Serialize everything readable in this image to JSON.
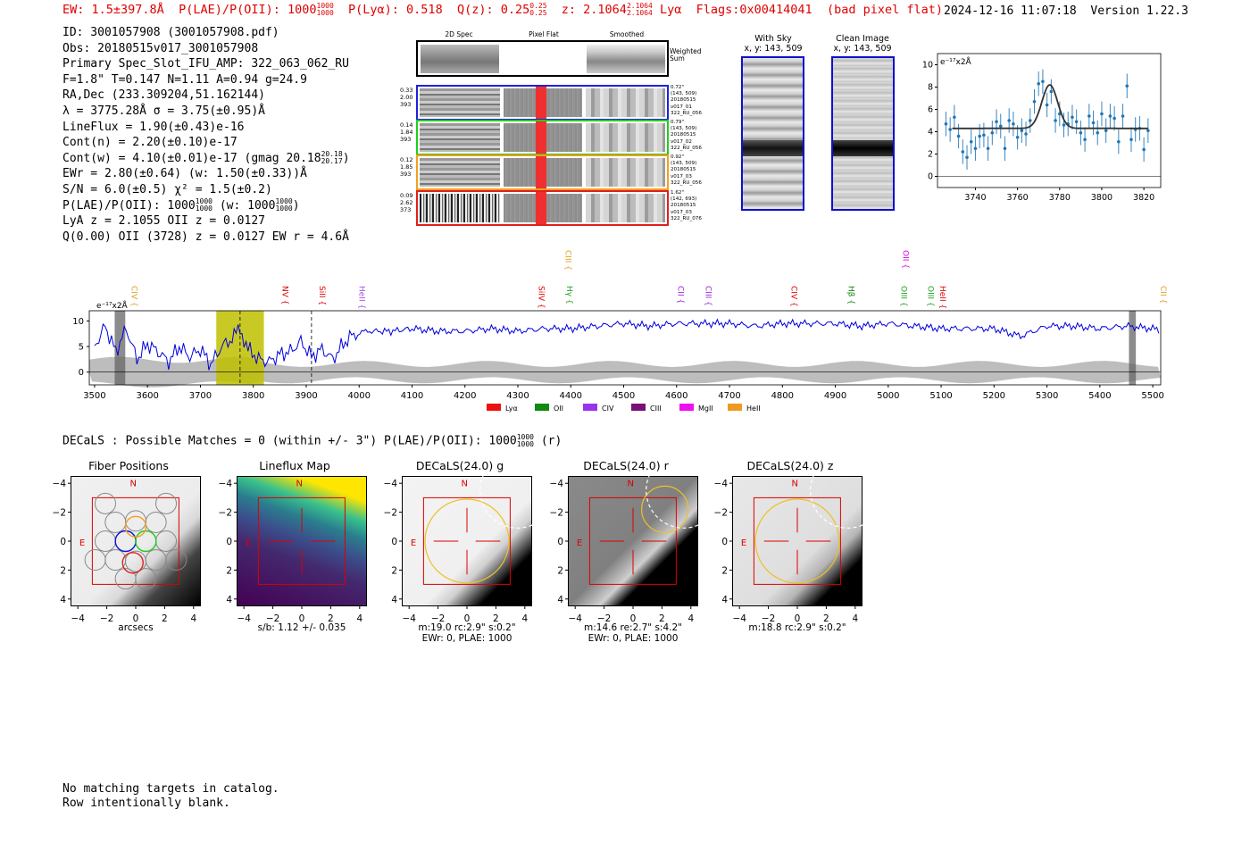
{
  "header": {
    "ew": "EW: 1.5±397.8Å",
    "plae_label": "P(LAE)/P(OII): 1000",
    "plae_hi": "1000",
    "plae_lo": "1000",
    "plya": "P(Lyα): 0.518",
    "qz_label": "Q(z): 0.25",
    "qz_hi": "0.25",
    "qz_lo": "0.25",
    "z_label": "z: 2.1064",
    "z_hi": "2.1064",
    "z_lo": "2.1064",
    "z_line": "Lyα",
    "flags": "Flags:0x00414041",
    "flag_note": "(bad pixel flat)",
    "timestamp": "2024-12-16 11:07:18",
    "version": "Version 1.22.3"
  },
  "info": {
    "id": "ID: 3001057908 (3001057908.pdf)",
    "obs": "Obs: 20180515v017_3001057908",
    "primary": "Primary Spec_Slot_IFU_AMP: 322_063_062_RU",
    "fiber": "F=1.8\"  T=0.147  N=1.11  A=0.94  g=24.9",
    "radec": "RA,Dec (233.309204,51.162144)",
    "lambda": "λ = 3775.28Å  σ = 3.75(±0.95)Å",
    "lineflux": "LineFlux = 1.90(±0.43)e-16",
    "contn": "Cont(n) = 2.20(±0.10)e-17",
    "contw": "Cont(w) = 4.10(±0.01)e-17 (gmag 20.18",
    "contw_hi": "20.18",
    "contw_lo": "20.17",
    "contw_end": ")",
    "ewr": "EWr = 2.80(±0.64) (w: 1.50(±0.33))Å",
    "sn": "S/N = 6.0(±0.5)  χ² = 1.5(±0.2)",
    "plae": "P(LAE)/P(OII): 1000",
    "plae_hi": "1000",
    "plae_lo": "1000",
    "plae_w": "(w: 1000",
    "plae_w_hi": "1000",
    "plae_w_lo": "1000",
    "plae_w_end": ")",
    "lya": "LyA z = 2.1055  OII z = 0.0127",
    "q": "Q(0.00) OII (3728) z = 0.0127  EW r = 4.6Å"
  },
  "cutouts": {
    "col_2d": "2D Spec",
    "col_flat": "Pixel Flat",
    "col_smooth": "Smoothed",
    "weighted": "Weighted Sum",
    "rows": [
      {
        "left": [
          "0.33",
          "2.00",
          "393"
        ],
        "right": [
          "0.72\"",
          "(143, 509)",
          "20180515",
          "v017_01",
          "322_RU_056"
        ],
        "color": "#2020dd"
      },
      {
        "left": [
          "0.14",
          "1.84",
          "393"
        ],
        "right": [
          "0.79\"",
          "(143, 509)",
          "20180515",
          "v017_02",
          "322_RU_056"
        ],
        "color": "#22cc22"
      },
      {
        "left": [
          "0.12",
          "1.85",
          "393"
        ],
        "right": [
          "0.92\"",
          "(143, 509)",
          "20180515",
          "v017_03",
          "322_RU_056"
        ],
        "color": "#f0a020"
      },
      {
        "left": [
          "0.09",
          "2.62",
          "373"
        ],
        "right": [
          "1.62\"",
          "(142, 693)",
          "20180515",
          "v017_03",
          "322_RU_076"
        ],
        "color": "#dd2020"
      }
    ]
  },
  "sky": {
    "with_sky_title": "With Sky",
    "with_sky_xy": "x, y: 143, 509",
    "clean_title": "Clean Image",
    "clean_xy": "x, y: 143, 509"
  },
  "chart_data": [
    {
      "type": "line",
      "id": "line-fit",
      "units_label": "e⁻¹⁷x2Å",
      "xlim": [
        3722,
        3828
      ],
      "ylim": [
        -1,
        11
      ],
      "xticks": [
        3740,
        3760,
        3780,
        3800,
        3820
      ],
      "yticks": [
        0,
        2,
        4,
        6,
        8,
        10
      ],
      "fit": {
        "continuum": 4.3,
        "peak": 8.2,
        "center": 3775.3,
        "sigma": 3.75,
        "x_start": 3729,
        "x_end": 3822
      },
      "points_x": [
        3726,
        3728,
        3730,
        3732,
        3734,
        3736,
        3738,
        3740,
        3742,
        3744,
        3746,
        3748,
        3750,
        3752,
        3754,
        3756,
        3758,
        3760,
        3762,
        3764,
        3766,
        3768,
        3770,
        3772,
        3774,
        3776,
        3778,
        3780,
        3782,
        3784,
        3786,
        3788,
        3790,
        3792,
        3794,
        3796,
        3798,
        3800,
        3802,
        3804,
        3806,
        3808,
        3810,
        3812,
        3814,
        3816,
        3818,
        3820,
        3822
      ],
      "points_y": [
        4.7,
        4.2,
        5.3,
        3.6,
        2.2,
        1.7,
        3.1,
        2.5,
        3.6,
        3.7,
        2.5,
        3.9,
        4.9,
        4.5,
        2.5,
        5.0,
        4.7,
        3.5,
        4.1,
        3.8,
        5.0,
        6.7,
        8.3,
        8.5,
        6.4,
        7.6,
        5.0,
        5.6,
        4.6,
        4.7,
        5.3,
        4.9,
        3.9,
        3.3,
        5.4,
        4.8,
        3.9,
        5.6,
        4.1,
        5.4,
        5.2,
        3.1,
        5.4,
        8.1,
        3.3,
        4.2,
        4.3,
        2.4,
        4.1
      ],
      "errors": 1.1
    },
    {
      "type": "line",
      "id": "full-spectrum",
      "units_label": "e⁻¹⁷x2Å",
      "xlim": [
        3490,
        5515
      ],
      "ylim": [
        -2.5,
        12
      ],
      "xticks": [
        3500,
        3600,
        3700,
        3800,
        3900,
        4000,
        4100,
        4200,
        4300,
        4400,
        4500,
        4600,
        4700,
        4800,
        4900,
        5000,
        5100,
        5200,
        5300,
        5400,
        5500
      ],
      "yticks": [
        0,
        5,
        10
      ],
      "highlight_band": [
        3730,
        3820
      ],
      "dashed_lines": [
        3775,
        3910
      ],
      "masked_bands": [
        [
          3538,
          3558
        ],
        [
          5455,
          5468
        ]
      ],
      "flux_x": [
        3500,
        3520,
        3540,
        3560,
        3580,
        3600,
        3620,
        3640,
        3660,
        3680,
        3700,
        3720,
        3740,
        3760,
        3775,
        3790,
        3810,
        3830,
        3850,
        3870,
        3890,
        3910,
        3930,
        3950,
        3970,
        3990,
        4020,
        4060,
        4100,
        4150,
        4200,
        4250,
        4300,
        4350,
        4400,
        4450,
        4500,
        4550,
        4600,
        4650,
        4700,
        4750,
        4800,
        4850,
        4900,
        4950,
        5000,
        5050,
        5100,
        5150,
        5200,
        5250,
        5300,
        5350,
        5400,
        5450,
        5500,
        5515
      ],
      "flux_y": [
        5.0,
        9.0,
        4.0,
        8.5,
        2.5,
        5.5,
        4.0,
        2.0,
        5.0,
        3.0,
        4.5,
        1.5,
        5.0,
        6.5,
        8.5,
        4.5,
        2.5,
        2.0,
        3.5,
        4.0,
        6.0,
        3.0,
        4.5,
        2.5,
        5.5,
        7.5,
        8.0,
        8.0,
        8.5,
        8.0,
        8.0,
        8.5,
        8.0,
        8.5,
        8.5,
        9.0,
        9.5,
        9.0,
        9.5,
        9.5,
        9.5,
        9.0,
        9.5,
        9.5,
        9.5,
        9.0,
        9.5,
        9.0,
        8.5,
        8.5,
        8.5,
        7.0,
        9.0,
        9.0,
        8.5,
        9.0,
        8.5,
        8.0
      ],
      "line_labels": [
        {
          "name": "CIV",
          "x": 3565,
          "color": "#e0a020"
        },
        {
          "name": "NV",
          "x": 3850,
          "color": "#e00000"
        },
        {
          "name": "SiII",
          "x": 3920,
          "color": "#e00000"
        },
        {
          "name": "HeII",
          "x": 3995,
          "color": "#a050e0"
        },
        {
          "name": "SiIV",
          "x": 4335,
          "color": "#e00000"
        },
        {
          "name": "CIII",
          "x": 4385,
          "color": "#e0a020"
        },
        {
          "name": "Hγ",
          "x": 4388,
          "color": "#20a020"
        },
        {
          "name": "CII",
          "x": 4598,
          "color": "#a020e0"
        },
        {
          "name": "CIII",
          "x": 4650,
          "color": "#a020e0"
        },
        {
          "name": "CIV",
          "x": 4812,
          "color": "#e00000"
        },
        {
          "name": "Hβ",
          "x": 4920,
          "color": "#108010"
        },
        {
          "name": "OIII",
          "x": 5020,
          "color": "#20a020"
        },
        {
          "name": "OII",
          "x": 5023,
          "color": "#e000e0"
        },
        {
          "name": "OIII",
          "x": 5070,
          "color": "#20a020"
        },
        {
          "name": "HeII",
          "x": 5093,
          "color": "#e00000"
        },
        {
          "name": "CII",
          "x": 5510,
          "color": "#e0a020"
        }
      ],
      "legend": [
        {
          "name": "Lyα",
          "color": "#ee1111"
        },
        {
          "name": "OII",
          "color": "#118811"
        },
        {
          "name": "CIV",
          "color": "#9933ee"
        },
        {
          "name": "CIII",
          "color": "#771177"
        },
        {
          "name": "MgII",
          "color": "#ee11ee"
        },
        {
          "name": "HeII",
          "color": "#ee9922"
        }
      ]
    }
  ],
  "decals": {
    "summary": "DECaLS : Possible Matches = 0 (within +/- 3\")  P(LAE)/P(OII): 1000",
    "summary_hi": "1000",
    "summary_lo": "1000",
    "summary_end": "(r)",
    "panels": [
      {
        "title": "Fiber Positions",
        "cap1": "arcsecs",
        "cap2": ""
      },
      {
        "title": "Lineflux Map",
        "cap1": "s/b: 1.12 +/- 0.035",
        "cap2": ""
      },
      {
        "title": "DECaLS(24.0) g",
        "cap1": "m:19.0 rc:2.9\"  s:0.2\"",
        "cap2": "EWr: 0, PLAE: 1000"
      },
      {
        "title": "DECaLS(24.0) r",
        "cap1": "m:14.6  re:2.7\"  s:4.2\"",
        "cap2": "EWr: 0, PLAE: 1000"
      },
      {
        "title": "DECaLS(24.0) z",
        "cap1": "m:18.8 rc:2.9\"  s:0.2\"",
        "cap2": ""
      }
    ],
    "ticks": [
      "−4",
      "−2",
      "0",
      "2",
      "4"
    ],
    "compass_n": "N",
    "compass_e": "E"
  },
  "footer": {
    "line1": "No matching targets in catalog.",
    "line2": "Row intentionally blank."
  }
}
